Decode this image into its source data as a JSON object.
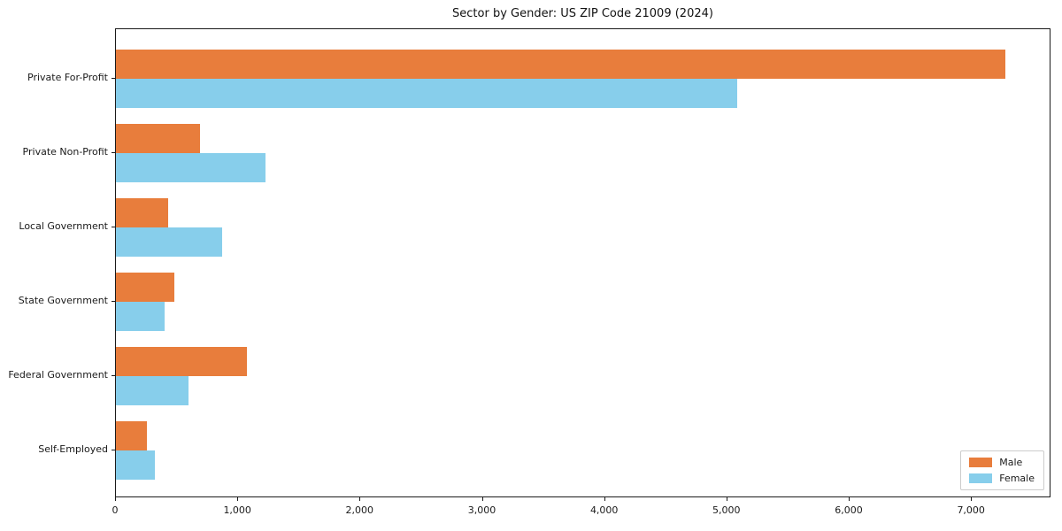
{
  "title": "Sector by Gender: US ZIP Code 21009 (2024)",
  "chart_data": {
    "type": "bar",
    "orientation": "horizontal",
    "title": "Sector by Gender: US ZIP Code 21009 (2024)",
    "categories": [
      "Private For-Profit",
      "Private Non-Profit",
      "Local Government",
      "State Government",
      "Federal Government",
      "Self-Employed"
    ],
    "series": [
      {
        "name": "Male",
        "color": "#E87D3C",
        "values": [
          7270,
          690,
          430,
          480,
          1070,
          250
        ]
      },
      {
        "name": "Female",
        "color": "#87CEEB",
        "values": [
          5080,
          1220,
          870,
          400,
          590,
          320
        ]
      }
    ],
    "xlabel": "",
    "ylabel": "",
    "xlim": [
      0,
      7650
    ],
    "xticks": [
      0,
      1000,
      2000,
      3000,
      4000,
      5000,
      6000,
      7000
    ],
    "xtick_labels": [
      "0",
      "1,000",
      "2,000",
      "3,000",
      "4,000",
      "5,000",
      "6,000",
      "7,000"
    ],
    "legend_position": "lower right",
    "grid": false
  }
}
